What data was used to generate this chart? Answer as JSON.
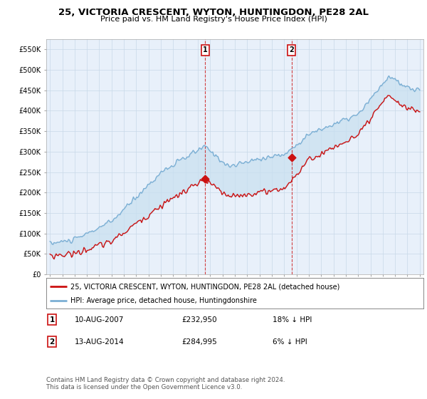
{
  "title": "25, VICTORIA CRESCENT, WYTON, HUNTINGDON, PE28 2AL",
  "subtitle": "Price paid vs. HM Land Registry's House Price Index (HPI)",
  "ylabel_ticks": [
    "£0",
    "£50K",
    "£100K",
    "£150K",
    "£200K",
    "£250K",
    "£300K",
    "£350K",
    "£400K",
    "£450K",
    "£500K",
    "£550K"
  ],
  "ytick_values": [
    0,
    50000,
    100000,
    150000,
    200000,
    250000,
    300000,
    350000,
    400000,
    450000,
    500000,
    550000
  ],
  "ylim": [
    0,
    575000
  ],
  "hpi_color": "#7bafd4",
  "price_color": "#cc1111",
  "fill_color": "#c8dff0",
  "bg_color": "#e8f0fa",
  "legend1": "25, VICTORIA CRESCENT, WYTON, HUNTINGDON, PE28 2AL (detached house)",
  "legend2": "HPI: Average price, detached house, Huntingdonshire",
  "sale1_date": "10-AUG-2007",
  "sale1_price": "£232,950",
  "sale1_note": "18% ↓ HPI",
  "sale2_date": "13-AUG-2014",
  "sale2_price": "£284,995",
  "sale2_note": "6% ↓ HPI",
  "footer": "Contains HM Land Registry data © Crown copyright and database right 2024.\nThis data is licensed under the Open Government Licence v3.0.",
  "sale1_x": 2007.6,
  "sale1_y": 232950,
  "sale2_x": 2014.6,
  "sale2_y": 284995,
  "xlim_left": 1994.7,
  "xlim_right": 2025.3
}
